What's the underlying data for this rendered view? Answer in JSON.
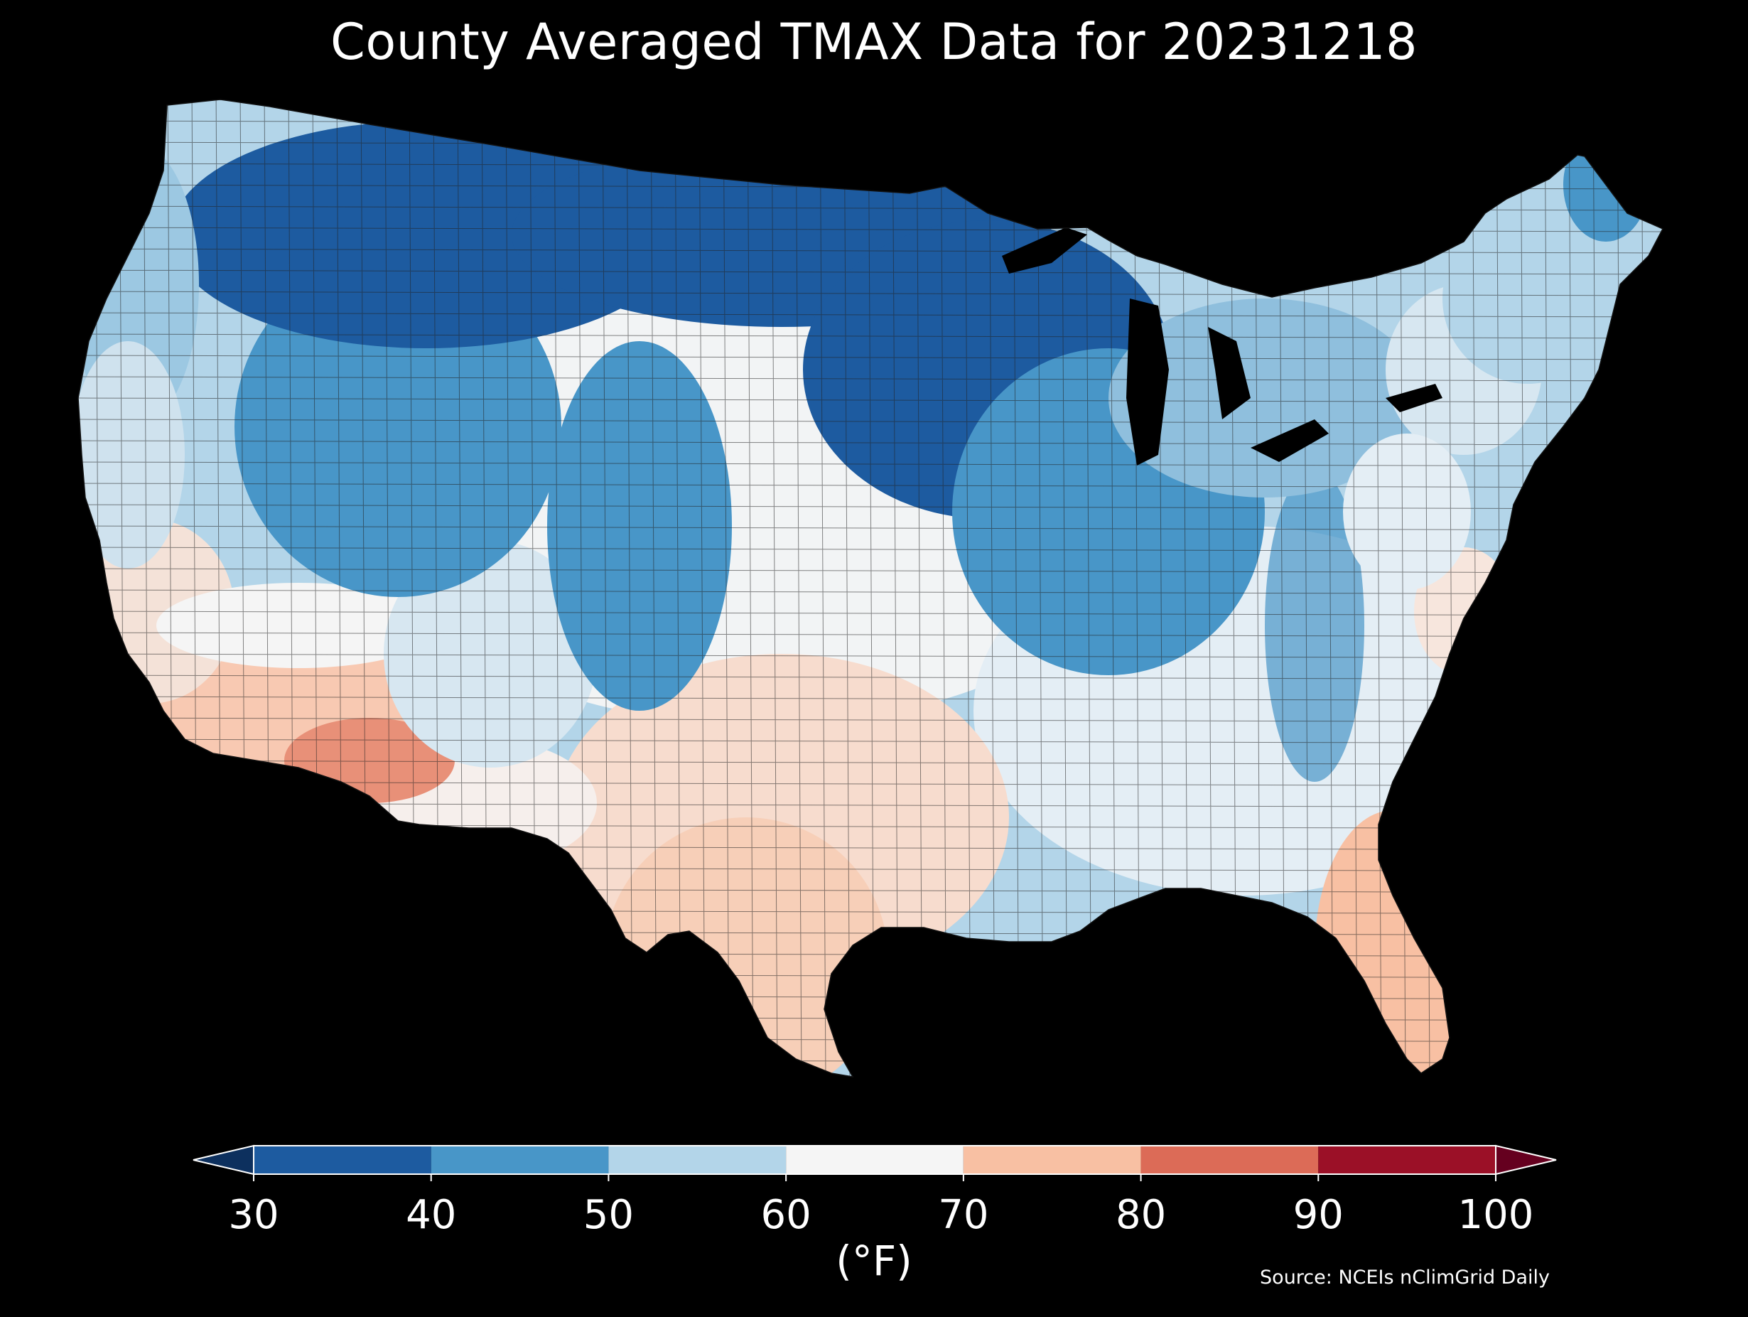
{
  "title": "County Averaged TMAX Data for 20231218",
  "colorbar": {
    "unit": "(°F)",
    "ticks": [
      "30",
      "40",
      "50",
      "60",
      "70",
      "80",
      "90",
      "100"
    ],
    "bins": [
      {
        "range": [
          30,
          40
        ],
        "color": "#1d5ba0"
      },
      {
        "range": [
          40,
          50
        ],
        "color": "#4896c8"
      },
      {
        "range": [
          50,
          60
        ],
        "color": "#b3d5e9"
      },
      {
        "range": [
          60,
          70
        ],
        "color": "#f5f5f5"
      },
      {
        "range": [
          70,
          80
        ],
        "color": "#f8c0a3"
      },
      {
        "range": [
          80,
          90
        ],
        "color": "#dc6b57"
      },
      {
        "range": [
          90,
          100
        ],
        "color": "#9b1027"
      }
    ],
    "under_color": "#0d305e",
    "over_color": "#65001f",
    "extend": "both"
  },
  "source": "Source: NCEIs nClimGrid Daily",
  "map": {
    "region": "contiguous-united-states",
    "background": "#000000",
    "water": "#000000",
    "border_color": "#222222"
  }
}
